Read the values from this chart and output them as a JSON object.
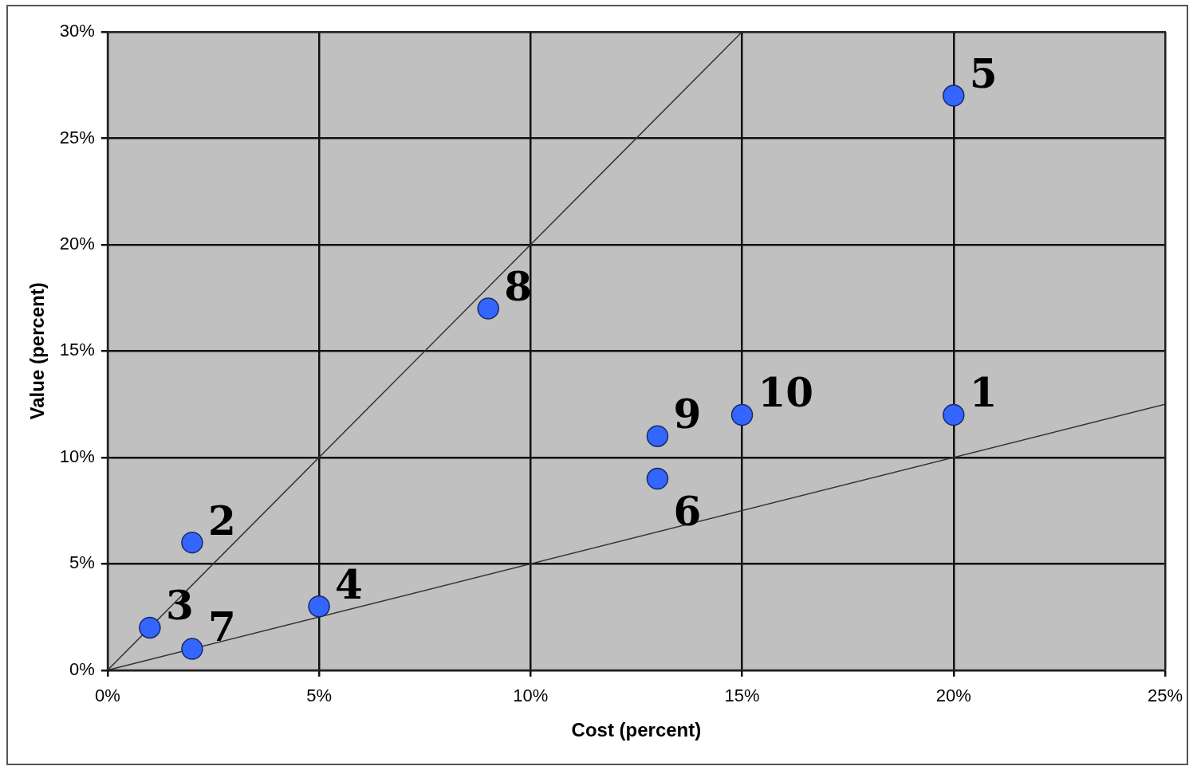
{
  "chart_data": {
    "type": "scatter",
    "xlabel": "Cost (percent)",
    "ylabel": "Value (percent)",
    "xlim": [
      0,
      25
    ],
    "xticks": [
      {
        "value": 0,
        "label": "0%"
      },
      {
        "value": 5,
        "label": "5%"
      },
      {
        "value": 10,
        "label": "10%"
      },
      {
        "value": 15,
        "label": "15%"
      },
      {
        "value": 20,
        "label": "20%"
      },
      {
        "value": 25,
        "label": "25%"
      }
    ],
    "ylim": [
      0,
      30
    ],
    "yticks": [
      {
        "value": 0,
        "label": "0%"
      },
      {
        "value": 5,
        "label": "5%"
      },
      {
        "value": 10,
        "label": "10%"
      },
      {
        "value": 15,
        "label": "15%"
      },
      {
        "value": 20,
        "label": "20%"
      },
      {
        "value": 25,
        "label": "25%"
      },
      {
        "value": 30,
        "label": "30%"
      }
    ],
    "grid": true,
    "legend": false,
    "marker": "circle",
    "series": [
      {
        "color": "#3366ff",
        "x": [
          20,
          2,
          1,
          5,
          20,
          13,
          2,
          9,
          13,
          15
        ],
        "values": [
          12,
          6,
          2,
          3,
          27,
          9,
          1,
          17,
          11,
          12
        ]
      },
      {
        "type": "line",
        "color": "#333333",
        "marker": "none",
        "line_style": "solid",
        "x": [
          0,
          15
        ],
        "values": [
          0,
          30
        ]
      },
      {
        "type": "line",
        "color": "#333333",
        "marker": "none",
        "line_style": "solid",
        "x": [
          0,
          25
        ],
        "values": [
          0,
          12.5
        ]
      }
    ],
    "annotations": [
      {
        "text": "1",
        "x": 20,
        "y": 12
      },
      {
        "text": "2",
        "x": 2,
        "y": 6
      },
      {
        "text": "3",
        "x": 1,
        "y": 2
      },
      {
        "text": "4",
        "x": 5,
        "y": 3
      },
      {
        "text": "5",
        "x": 20,
        "y": 27
      },
      {
        "text": "6",
        "x": 13,
        "y": 9
      },
      {
        "text": "7",
        "x": 2,
        "y": 1
      },
      {
        "text": "8",
        "x": 9,
        "y": 17
      },
      {
        "text": "9",
        "x": 13,
        "y": 11
      },
      {
        "text": "10",
        "x": 15,
        "y": 12
      }
    ]
  }
}
